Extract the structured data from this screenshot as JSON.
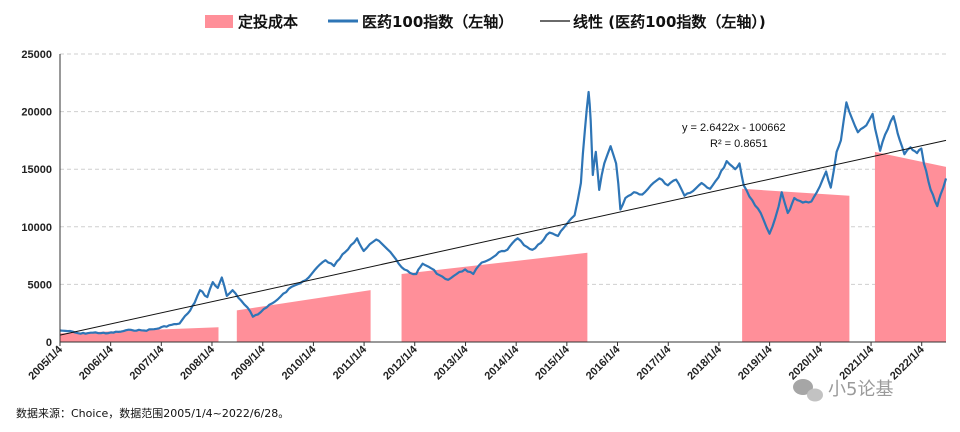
{
  "chart_data": {
    "type": "area",
    "x_start": "2005/1/4",
    "x_end": "2022/6/28",
    "ylim": [
      0,
      25000
    ],
    "yticks": [
      0,
      5000,
      10000,
      15000,
      20000,
      25000
    ],
    "ytick_labels": [
      "0",
      "5000",
      "10000",
      "15000",
      "20000",
      "25000"
    ],
    "xtick_labels": [
      "2005/1/4",
      "2006/1/4",
      "2007/1/4",
      "2008/1/4",
      "2009/1/4",
      "2010/1/4",
      "2011/1/4",
      "2012/1/4",
      "2013/1/4",
      "2014/1/4",
      "2015/1/4",
      "2016/1/4",
      "2017/1/4",
      "2018/1/4",
      "2019/1/4",
      "2020/1/4",
      "2021/1/4",
      "2022/1/4"
    ],
    "grid": "horizontal-dashed",
    "legend": {
      "position": "top",
      "items": [
        "定投成本",
        "医药100指数（左轴）",
        "线性 (医药100指数（左轴）)"
      ]
    },
    "series": [
      {
        "name": "医药100指数（左轴）",
        "kind": "line",
        "color": "#2e75b6",
        "points": [
          [
            "2005/1/4",
            1000
          ],
          [
            "2005/3/1",
            950
          ],
          [
            "2005/6/1",
            720
          ],
          [
            "2005/9/1",
            820
          ],
          [
            "2005/12/1",
            750
          ],
          [
            "2006/3/1",
            880
          ],
          [
            "2006/6/1",
            1050
          ],
          [
            "2006/9/1",
            1000
          ],
          [
            "2006/12/1",
            1150
          ],
          [
            "2007/3/1",
            1450
          ],
          [
            "2007/5/15",
            1600
          ],
          [
            "2007/7/15",
            2500
          ],
          [
            "2007/9/1",
            3400
          ],
          [
            "2007/10/10",
            4500
          ],
          [
            "2007/12/1",
            3900
          ],
          [
            "2008/1/10",
            5200
          ],
          [
            "2008/2/15",
            4700
          ],
          [
            "2008/3/15",
            5600
          ],
          [
            "2008/4/20",
            4000
          ],
          [
            "2008/6/1",
            4500
          ],
          [
            "2008/8/1",
            3600
          ],
          [
            "2008/9/15",
            3000
          ],
          [
            "2008/10/25",
            2200
          ],
          [
            "2008/12/1",
            2400
          ],
          [
            "2009/2/1",
            3000
          ],
          [
            "2009/4/1",
            3500
          ],
          [
            "2009/6/1",
            4200
          ],
          [
            "2009/8/1",
            4800
          ],
          [
            "2009/10/1",
            5100
          ],
          [
            "2009/12/1",
            5600
          ],
          [
            "2010/2/1",
            6500
          ],
          [
            "2010/4/1",
            7100
          ],
          [
            "2010/6/1",
            6600
          ],
          [
            "2010/8/1",
            7600
          ],
          [
            "2010/10/1",
            8400
          ],
          [
            "2010/11/15",
            9000
          ],
          [
            "2011/1/1",
            7900
          ],
          [
            "2011/2/15",
            8500
          ],
          [
            "2011/4/1",
            8900
          ],
          [
            "2011/6/1",
            8300
          ],
          [
            "2011/8/1",
            7500
          ],
          [
            "2011/10/1",
            6500
          ],
          [
            "2011/12/1",
            6000
          ],
          [
            "2012/1/15",
            5900
          ],
          [
            "2012/3/1",
            6800
          ],
          [
            "2012/5/1",
            6400
          ],
          [
            "2012/7/1",
            5800
          ],
          [
            "2012/9/1",
            5400
          ],
          [
            "2012/11/1",
            5900
          ],
          [
            "2013/1/1",
            6300
          ],
          [
            "2013/3/1",
            5900
          ],
          [
            "2013/5/1",
            6900
          ],
          [
            "2013/7/1",
            7200
          ],
          [
            "2013/9/1",
            7800
          ],
          [
            "2013/11/1",
            8000
          ],
          [
            "2014/1/15",
            9000
          ],
          [
            "2014/3/1",
            8400
          ],
          [
            "2014/5/1",
            8000
          ],
          [
            "2014/7/1",
            8600
          ],
          [
            "2014/9/1",
            9500
          ],
          [
            "2014/11/1",
            9200
          ],
          [
            "2015/1/1",
            10200
          ],
          [
            "2015/3/1",
            11000
          ],
          [
            "2015/4/15",
            13800
          ],
          [
            "2015/5/15",
            18500
          ],
          [
            "2015/6/10",
            21700
          ],
          [
            "2015/6/25",
            19200
          ],
          [
            "2015/7/10",
            14500
          ],
          [
            "2015/8/1",
            16500
          ],
          [
            "2015/8/25",
            13200
          ],
          [
            "2015/10/1",
            15500
          ],
          [
            "2015/11/15",
            17000
          ],
          [
            "2015/12/25",
            15500
          ],
          [
            "2016/1/25",
            11500
          ],
          [
            "2016/3/1",
            12500
          ],
          [
            "2016/5/1",
            13000
          ],
          [
            "2016/7/1",
            12800
          ],
          [
            "2016/9/1",
            13600
          ],
          [
            "2016/11/1",
            14200
          ],
          [
            "2017/1/1",
            13600
          ],
          [
            "2017/3/1",
            14100
          ],
          [
            "2017/5/1",
            12700
          ],
          [
            "2017/7/1",
            13100
          ],
          [
            "2017/9/1",
            13800
          ],
          [
            "2017/11/1",
            13300
          ],
          [
            "2018/1/1",
            14300
          ],
          [
            "2018/3/1",
            15700
          ],
          [
            "2018/5/1",
            15000
          ],
          [
            "2018/6/1",
            15500
          ],
          [
            "2018/7/1",
            13600
          ],
          [
            "2018/9/1",
            12300
          ],
          [
            "2018/11/1",
            11200
          ],
          [
            "2019/1/3",
            9400
          ],
          [
            "2019/2/15",
            10800
          ],
          [
            "2019/4/1",
            13000
          ],
          [
            "2019/5/15",
            11200
          ],
          [
            "2019/7/1",
            12500
          ],
          [
            "2019/9/1",
            12100
          ],
          [
            "2019/11/1",
            12200
          ],
          [
            "2020/1/1",
            13500
          ],
          [
            "2020/2/15",
            14800
          ],
          [
            "2020/3/20",
            13400
          ],
          [
            "2020/5/1",
            16500
          ],
          [
            "2020/6/1",
            17500
          ],
          [
            "2020/7/10",
            20800
          ],
          [
            "2020/8/20",
            19400
          ],
          [
            "2020/10/1",
            18200
          ],
          [
            "2020/12/1",
            18800
          ],
          [
            "2021/1/15",
            19800
          ],
          [
            "2021/3/10",
            16600
          ],
          [
            "2021/4/15",
            18000
          ],
          [
            "2021/6/15",
            19600
          ],
          [
            "2021/7/15",
            18100
          ],
          [
            "2021/9/1",
            16300
          ],
          [
            "2021/10/15",
            16900
          ],
          [
            "2021/12/1",
            16400
          ],
          [
            "2022/1/1",
            16800
          ],
          [
            "2022/1/20",
            15500
          ],
          [
            "2022/3/10",
            13200
          ],
          [
            "2022/4/26",
            11800
          ],
          [
            "2022/5/20",
            12800
          ],
          [
            "2022/6/28",
            14200
          ]
        ]
      },
      {
        "name": "定投成本",
        "kind": "area",
        "color": "#ff8f99",
        "segments": [
          {
            "start": "2005/1/4",
            "end": "2008/2/20",
            "y_start": 750,
            "y_end": 1280
          },
          {
            "start": "2008/7/1",
            "end": "2011/2/20",
            "y_start": 2750,
            "y_end": 4500
          },
          {
            "start": "2011/10/1",
            "end": "2015/6/1",
            "y_start": 5900,
            "y_end": 7750
          },
          {
            "start": "2018/6/20",
            "end": "2020/8/1",
            "y_start": 13300,
            "y_end": 12700
          },
          {
            "start": "2021/2/1",
            "end": "2022/6/28",
            "y_start": 16500,
            "y_end": 15200
          }
        ]
      },
      {
        "name": "线性 (医药100指数（左轴）)",
        "kind": "trendline",
        "color": "#111111",
        "equation": "y = 2.6422x - 100662",
        "r_squared": "R² = 0.8651",
        "y_start": 600,
        "y_end": 17500
      }
    ],
    "annotations": [
      "y = 2.6422x - 100662",
      "R² = 0.8651"
    ],
    "source_note": "数据来源：Choice，数据范围2005/1/4~2022/6/28。",
    "watermark": "小5论基"
  }
}
